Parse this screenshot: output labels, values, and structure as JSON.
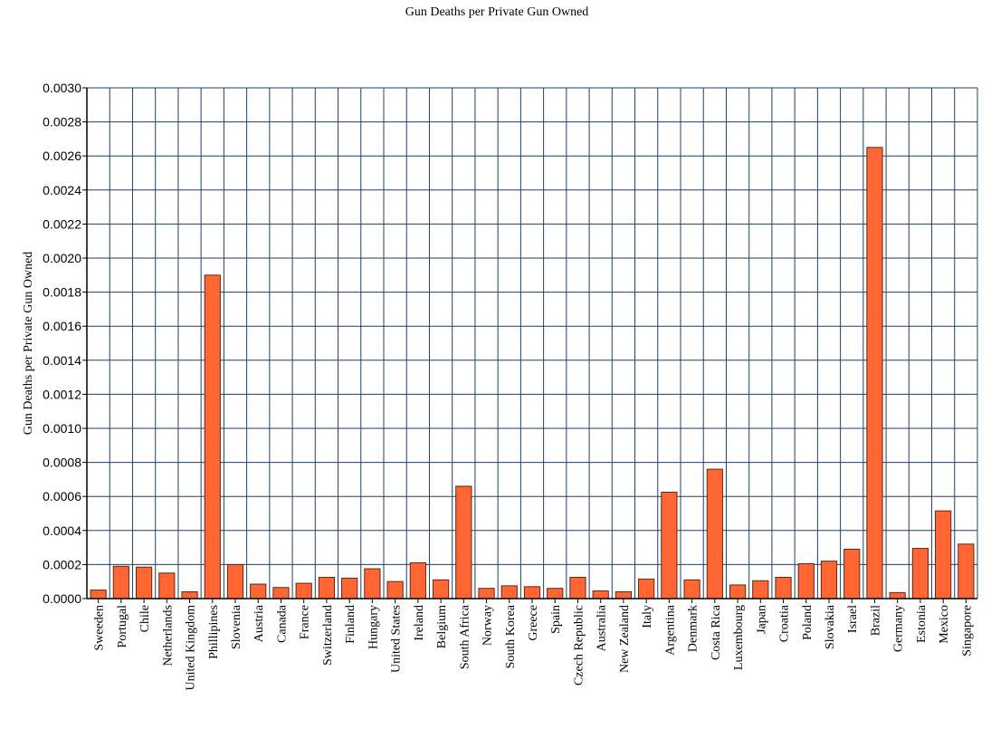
{
  "chart_data": {
    "type": "bar",
    "title": "Gun Deaths per Private Gun Owned",
    "ylabel": "Gun Deaths per Private Gun Owned",
    "xlabel": "",
    "ylim": [
      0,
      0.003
    ],
    "yticks": [
      "0.0000",
      "0.0002",
      "0.0004",
      "0.0006",
      "0.0008",
      "0.0010",
      "0.0012",
      "0.0014",
      "0.0016",
      "0.0018",
      "0.0020",
      "0.0022",
      "0.0024",
      "0.0026",
      "0.0028",
      "0.0030"
    ],
    "grid": true,
    "categories": [
      "Sweeden",
      "Portugal",
      "Chile",
      "Netherlands",
      "United Kingdom",
      "Phillipines",
      "Slovenia",
      "Austria",
      "Canada",
      "France",
      "Switzerland",
      "Finland",
      "Hungary",
      "United States",
      "Ireland",
      "Belgium",
      "South Africa",
      "Norway",
      "South Korea",
      "Greece",
      "Spain",
      "Czech Republic",
      "Australia",
      "New Zealand",
      "Italy",
      "Argentina",
      "Denmark",
      "Costa Rica",
      "Luxembourg",
      "Japan",
      "Croatia",
      "Poland",
      "Slovakia",
      "Israel",
      "Brazil",
      "Germany",
      "Estonia",
      "Mexico",
      "Singapore"
    ],
    "values": [
      5e-05,
      0.00019,
      0.000185,
      0.00015,
      4e-05,
      0.0019,
      0.0002,
      8.5e-05,
      6.5e-05,
      9e-05,
      0.000125,
      0.00012,
      0.000175,
      0.0001,
      0.00021,
      0.00011,
      0.00066,
      6e-05,
      7.5e-05,
      7e-05,
      6e-05,
      0.000125,
      4.5e-05,
      4e-05,
      0.000115,
      0.000625,
      0.00011,
      0.00076,
      8e-05,
      0.000105,
      0.000125,
      0.000205,
      0.00022,
      0.00029,
      0.00265,
      3.5e-05,
      0.000295,
      0.000515,
      0.00032
    ],
    "colors": {
      "bar": "#ff6633",
      "bar_stroke": "#5a2a14",
      "grid": "#1f3f66",
      "axis": "#000000",
      "text": "#000000"
    }
  }
}
